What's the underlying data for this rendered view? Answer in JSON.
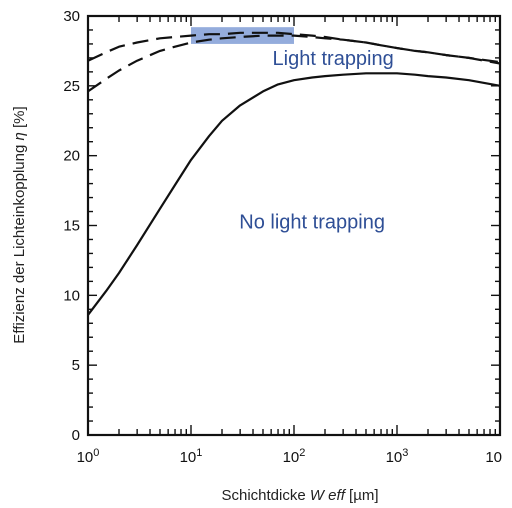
{
  "chart_data": {
    "type": "line",
    "x_scale": "log",
    "xlim": [
      1,
      10000
    ],
    "ylim": [
      0,
      30
    ],
    "x_ticks": [
      1,
      10,
      100,
      1000,
      10000
    ],
    "x_tick_labels": [
      {
        "base": "10",
        "exp": "0"
      },
      {
        "base": "10",
        "exp": "1"
      },
      {
        "base": "10",
        "exp": "2"
      },
      {
        "base": "10",
        "exp": "3"
      },
      {
        "base": "10",
        "exp": ""
      }
    ],
    "y_ticks": [
      0,
      5,
      10,
      15,
      20,
      25,
      30
    ],
    "y_tick_labels": [
      "0",
      "5",
      "10",
      "15",
      "20",
      "25",
      "30"
    ],
    "xlabel": {
      "prefix": "Schichtdicke ",
      "italic": "W eff",
      "suffix": " [µm]"
    },
    "ylabel": {
      "prefix": "Effizienz der Lichteinkopplung ",
      "italic": "η",
      "suffix": " [%]"
    },
    "grid": false,
    "series": [
      {
        "style": "solid",
        "x": [
          1,
          1.5,
          2,
          3,
          5,
          7,
          10,
          15,
          20,
          30,
          50,
          70,
          100,
          150,
          200,
          300,
          500,
          700,
          1000,
          1500,
          2000,
          3000,
          5000,
          10000
        ],
        "y": [
          8.6,
          10.3,
          11.6,
          13.6,
          16.2,
          17.9,
          19.7,
          21.4,
          22.5,
          23.6,
          24.6,
          25.1,
          25.4,
          25.6,
          25.7,
          25.8,
          25.9,
          25.9,
          25.9,
          25.8,
          25.7,
          25.6,
          25.4,
          25.0
        ]
      },
      {
        "style": "dashed",
        "x": [
          1,
          1.5,
          2,
          3,
          5,
          7,
          10,
          15,
          20,
          30,
          50,
          70,
          100,
          150,
          200,
          300,
          500,
          700,
          1000,
          1500,
          2000,
          3000,
          5000,
          10000
        ],
        "y": [
          24.6,
          25.5,
          26.1,
          26.8,
          27.5,
          27.8,
          28.1,
          28.3,
          28.4,
          28.5,
          28.6,
          28.6,
          28.6,
          28.5,
          28.4,
          28.3,
          28.1,
          27.9,
          27.7,
          27.5,
          27.4,
          27.2,
          27.0,
          26.7
        ]
      },
      {
        "style": "dashed",
        "x": [
          1,
          1.5,
          2,
          3,
          5,
          7,
          10,
          15,
          20,
          30,
          50,
          70,
          100,
          150,
          200,
          300,
          500,
          700,
          1000,
          1500,
          2000,
          3000,
          5000,
          10000
        ],
        "y": [
          26.8,
          27.4,
          27.8,
          28.1,
          28.4,
          28.5,
          28.6,
          28.7,
          28.7,
          28.8,
          28.8,
          28.8,
          28.7,
          28.6,
          28.5,
          28.3,
          28.1,
          27.9,
          27.7,
          27.5,
          27.4,
          27.2,
          27.0,
          26.6
        ]
      }
    ],
    "highlight": {
      "x_range": [
        10,
        100
      ],
      "y_range": [
        28.0,
        29.2
      ],
      "color": "#5b7fc9"
    },
    "annotations": [
      {
        "text": "Light trapping",
        "x": 240,
        "y": 26.5,
        "color": "#2f4f96"
      },
      {
        "text": "No light trapping",
        "x": 150,
        "y": 14.8,
        "color": "#2f4f96"
      }
    ]
  }
}
